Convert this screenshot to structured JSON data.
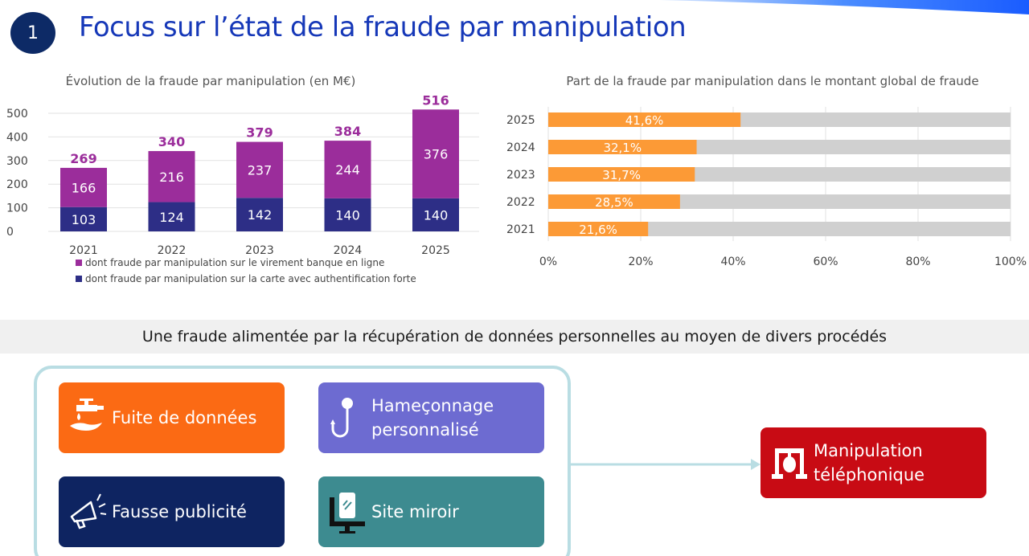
{
  "header": {
    "section_number": "1",
    "title": "Focus sur l’état de la fraude par manipulation"
  },
  "colors": {
    "title_blue": "#1638b8",
    "badge_navy": "#0d2a66",
    "virement_purple": "#9b2d9b",
    "carte_navy": "#2d2e86",
    "share_orange": "#fc9a36",
    "share_rest_grey": "#d0d0d0",
    "fuite_orange": "#fb6a14",
    "hameconnage_violet": "#6d6bd1",
    "fausse_pub_navy": "#0e2461",
    "site_miroir_teal": "#3d8b90",
    "manipulation_red": "#c80b14"
  },
  "chart_data": [
    {
      "type": "bar",
      "stacked": true,
      "title": "Évolution de la fraude par manipulation (en M€)",
      "categories": [
        "2021",
        "2022",
        "2023",
        "2024",
        "2025"
      ],
      "series": [
        {
          "name": "dont fraude par manipulation sur la carte avec authentification forte",
          "values": [
            103,
            124,
            142,
            140,
            140
          ]
        },
        {
          "name": "dont fraude par manipulation sur le virement banque en ligne",
          "values": [
            166,
            216,
            237,
            244,
            376
          ]
        }
      ],
      "totals": [
        269,
        340,
        379,
        384,
        516
      ],
      "y_ticks": [
        "0",
        "100",
        "200",
        "300",
        "400",
        "500"
      ],
      "ylim": [
        0,
        500
      ],
      "grid": true,
      "legend_position": "bottom"
    },
    {
      "type": "bar",
      "orientation": "horizontal",
      "title": "Part de la fraude par manipulation dans le montant global de fraude",
      "categories": [
        "2025",
        "2024",
        "2023",
        "2022",
        "2021"
      ],
      "values": [
        41.6,
        32.1,
        31.7,
        28.5,
        21.6
      ],
      "value_labels": [
        "41,6%",
        "32,1%",
        "31,7%",
        "28,5%",
        "21,6%"
      ],
      "x_ticks": [
        "0%",
        "20%",
        "40%",
        "60%",
        "80%",
        "100%"
      ],
      "xlim": [
        0,
        100
      ],
      "grid": true
    }
  ],
  "banner": {
    "text": "Une fraude alimentée par la récupération de données personnelles au moyen de divers procédés"
  },
  "tiles": {
    "fuite": {
      "label": "Fuite de données",
      "icon": "water-tap-icon"
    },
    "hameconnage": {
      "label": "Hameçonnage\npersonnalisé",
      "icon": "fishing-hook-icon"
    },
    "fausse_pub": {
      "label": "Fausse publicité",
      "icon": "megaphone-icon"
    },
    "site_miroir": {
      "label": "Site miroir",
      "icon": "phone-screen-icon"
    },
    "manipulation": {
      "label": "Manipulation\ntéléphonique",
      "icon": "telephone-icon"
    }
  }
}
